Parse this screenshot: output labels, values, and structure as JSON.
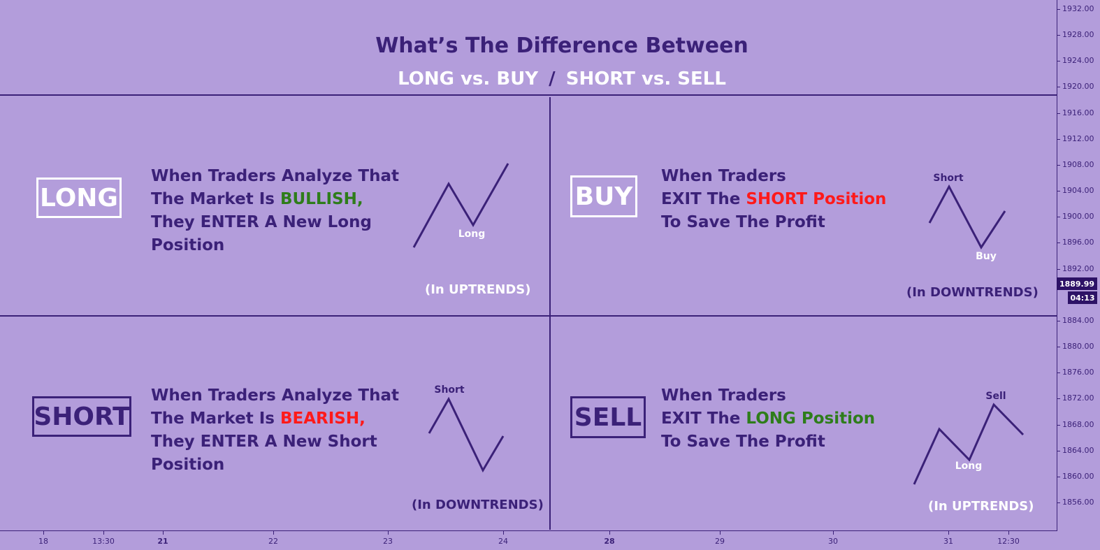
{
  "title": "What’s The Difference Between",
  "subtitle": {
    "left": "LONG vs. BUY",
    "sep": "/",
    "right": "SHORT vs. SELL"
  },
  "panels": {
    "long": {
      "term": "LONG",
      "line1": "When Traders Analyze That",
      "line2_pre": "The Market Is ",
      "line2_hl": "BULLISH,",
      "line3": "They ENTER A New Long",
      "line4": "Position",
      "point_label": "Long",
      "caption": "(In UPTRENDS)"
    },
    "buy": {
      "term": "BUY",
      "line1": "When Traders",
      "line2_pre": "EXIT The ",
      "line2_hl": "SHORT Position",
      "line3": "To Save The Profit",
      "label_top": "Short",
      "label_bottom": "Buy",
      "caption": "(In DOWNTRENDS)"
    },
    "short": {
      "term": "SHORT",
      "line1": "When Traders Analyze That",
      "line2_pre": "The Market Is ",
      "line2_hl": "BEARISH,",
      "line3": "They ENTER A New Short",
      "line4": "Position",
      "point_label": "Short",
      "caption": "(In DOWNTRENDS)"
    },
    "sell": {
      "term": "SELL",
      "line1": "When Traders",
      "line2_pre": "EXIT The ",
      "line2_hl": "LONG Position",
      "line3": "To Save The Profit",
      "label_top": "Sell",
      "label_bottom": "Long",
      "caption": "(In UPTRENDS)"
    }
  },
  "colors": {
    "background": "#b39ddb",
    "ink": "#3b2178",
    "bullish": "#2e7d1a",
    "bearish": "#ff1a1a",
    "label_white": "#ffffff"
  },
  "chart_data": {
    "type": "line",
    "price_axis": {
      "ticks": [
        1932,
        1928,
        1924,
        1920,
        1916,
        1912,
        1908,
        1904,
        1900,
        1896,
        1892,
        1884,
        1880,
        1876,
        1872,
        1868,
        1864,
        1860,
        1856
      ],
      "tick_labels": [
        "1932.00",
        "1928.00",
        "1924.00",
        "1920.00",
        "1916.00",
        "1912.00",
        "1908.00",
        "1904.00",
        "1900.00",
        "1896.00",
        "1892.00",
        "1884.00",
        "1880.00",
        "1876.00",
        "1872.00",
        "1868.00",
        "1864.00",
        "1860.00",
        "1856.00"
      ],
      "current_price": "1889.99",
      "countdown": "04:13"
    },
    "time_axis": {
      "labels": [
        "18",
        "13:30",
        "21",
        "22",
        "23",
        "24",
        "28",
        "29",
        "30",
        "31",
        "12:30"
      ],
      "bold": [
        "21",
        "28"
      ]
    }
  }
}
